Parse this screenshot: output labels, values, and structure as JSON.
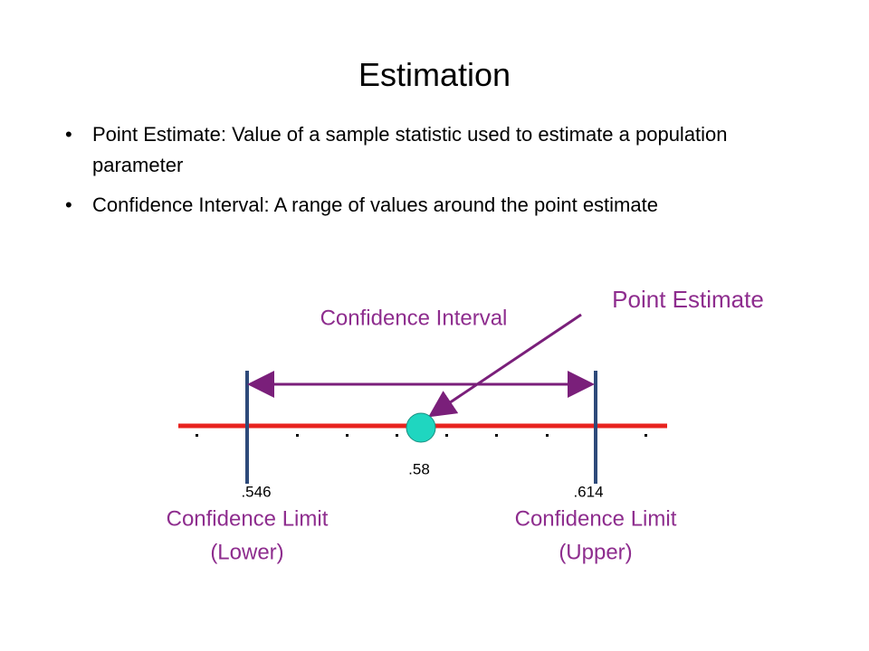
{
  "header": {
    "title": "Estimation"
  },
  "bullets": [
    "Point Estimate: Value of a sample statistic used to estimate a population parameter",
    "Confidence Interval: A range of values around the point estimate"
  ],
  "diagram": {
    "point_estimate_label": "Point Estimate",
    "interval_label": "Confidence Interval",
    "point_value": ".58",
    "lower_value": ".546",
    "upper_value": ".614",
    "lower_label": [
      "Confidence Limit",
      "(Lower)"
    ],
    "upper_label": [
      "Confidence Limit",
      "(Upper)"
    ]
  }
}
